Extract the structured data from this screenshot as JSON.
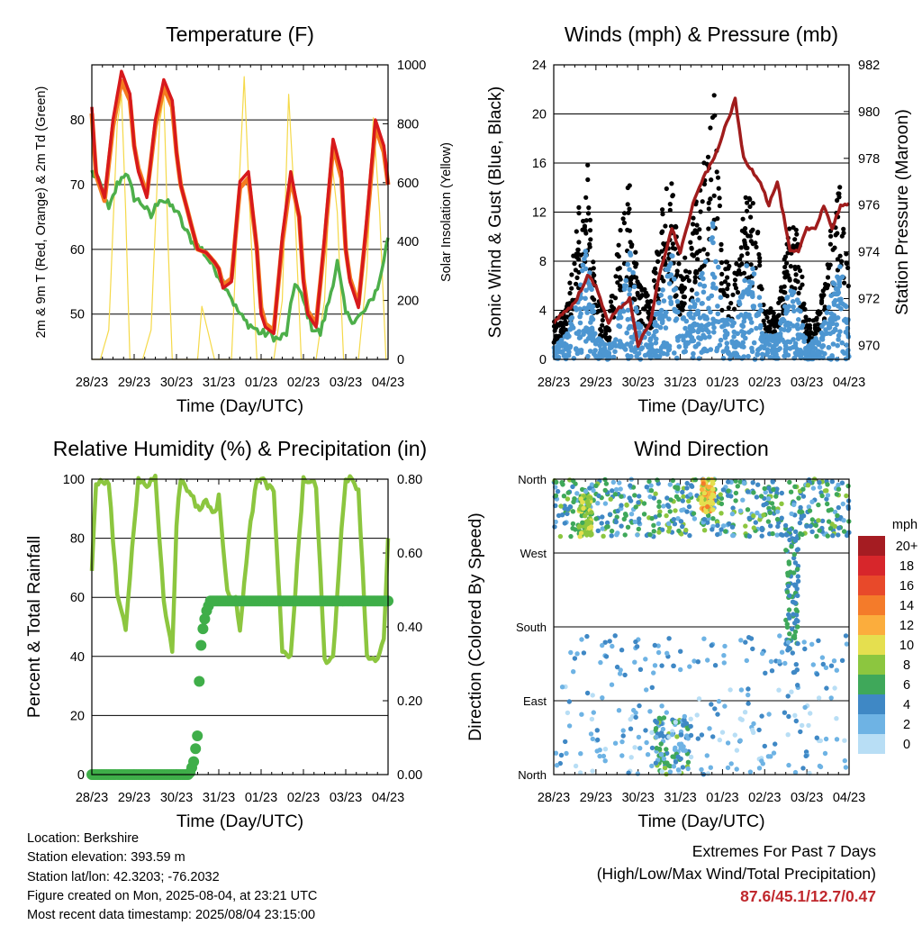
{
  "chart_data": [
    {
      "type": "line",
      "title": "Temperature (F)",
      "xlabel": "Time (Day/UTC)",
      "ylabel": "2m & 9m T (Red, Orange) & 2m Td (Green)",
      "ylabel_right": "Solar Insolation (Yellow)",
      "x_ticks": [
        "28/23",
        "29/23",
        "30/23",
        "31/23",
        "01/23",
        "02/23",
        "03/23",
        "04/23"
      ],
      "y_ticks": [
        50,
        60,
        70,
        80
      ],
      "y_right_ticks": [
        0,
        200,
        400,
        600,
        800,
        1000
      ],
      "ylim": [
        43,
        88.5
      ],
      "ylim_right": [
        0,
        1000
      ],
      "grid": true,
      "series": [
        {
          "role": "2m T",
          "color": "#d7191c",
          "x": [
            0,
            0.1,
            0.3,
            0.5,
            0.7,
            0.9,
            1.0,
            1.1,
            1.3,
            1.5,
            1.7,
            1.9,
            2.0,
            2.1,
            2.3,
            2.5,
            2.7,
            2.9,
            3.0,
            3.1,
            3.3,
            3.5,
            3.7,
            3.9,
            4.0,
            4.1,
            4.3,
            4.5,
            4.7,
            4.9,
            5.0,
            5.1,
            5.3,
            5.5,
            5.7,
            5.9,
            6.0,
            6.1,
            6.3,
            6.5,
            6.7,
            6.9,
            7.0
          ],
          "y": [
            82,
            72,
            68,
            80,
            87.5,
            84,
            76,
            72,
            68,
            80,
            86.2,
            83,
            75,
            70,
            65,
            60,
            59.5,
            58,
            57,
            54,
            55,
            70.5,
            72,
            60,
            50,
            48,
            47,
            62,
            72,
            65,
            55,
            50,
            48,
            62,
            77,
            72,
            60,
            55,
            51,
            65,
            80,
            76,
            70
          ]
        },
        {
          "role": "9m T",
          "color": "#f47b20",
          "x": [
            0,
            0.1,
            0.3,
            0.5,
            0.7,
            0.9,
            1.0,
            1.1,
            1.3,
            1.5,
            1.7,
            1.9,
            2.0,
            2.1,
            2.3,
            2.5,
            2.7,
            2.9,
            3.0,
            3.1,
            3.3,
            3.5,
            3.7,
            3.9,
            4.0,
            4.1,
            4.3,
            4.5,
            4.7,
            4.9,
            5.0,
            5.1,
            5.3,
            5.5,
            5.7,
            5.9,
            6.0,
            6.1,
            6.3,
            6.5,
            6.7,
            6.9,
            7.0
          ],
          "y": [
            81,
            71.5,
            67.5,
            79,
            86,
            83,
            76,
            72.5,
            68.5,
            79,
            85,
            82,
            75,
            70,
            65,
            60,
            59.5,
            58,
            57,
            54.5,
            55.5,
            69.5,
            71,
            60,
            51,
            48.5,
            47.5,
            61,
            71,
            65,
            55.5,
            50.5,
            48.5,
            61,
            76,
            71,
            60,
            55.5,
            51.5,
            64,
            79,
            75,
            70
          ]
        },
        {
          "role": "2m Td",
          "color": "#4daf4a",
          "x": [
            0,
            0.2,
            0.4,
            0.6,
            0.8,
            1.0,
            1.2,
            1.4,
            1.6,
            1.8,
            2.0,
            2.2,
            2.4,
            2.6,
            2.8,
            3.0,
            3.2,
            3.4,
            3.6,
            3.8,
            4.0,
            4.2,
            4.4,
            4.6,
            4.8,
            5.0,
            5.2,
            5.4,
            5.6,
            5.8,
            6.0,
            6.2,
            6.4,
            6.6,
            6.8,
            7.0
          ],
          "y": [
            72,
            70,
            66,
            70,
            72,
            68,
            67,
            65,
            68,
            67,
            66,
            63,
            61,
            60,
            58,
            56,
            54,
            51,
            49,
            48,
            47,
            47,
            46,
            47,
            55,
            52,
            48,
            47,
            52,
            58,
            50,
            49,
            50,
            52,
            55,
            62
          ]
        },
        {
          "role": "Solar Insolation",
          "color": "#f5d949",
          "axis": "right",
          "x": [
            0,
            0.1,
            0.2,
            0.4,
            0.6,
            0.7,
            0.8,
            0.9,
            1.0,
            1.1,
            1.2,
            1.4,
            1.6,
            1.7,
            1.8,
            1.9,
            2.0,
            2.3,
            2.5,
            2.6,
            2.7,
            2.8,
            2.9,
            3.0,
            3.3,
            3.45,
            3.6,
            3.75,
            3.9,
            4.0,
            4.3,
            4.5,
            4.65,
            4.8,
            4.95,
            5.0,
            5.3,
            5.5,
            5.65,
            5.8,
            5.95,
            6.0,
            6.3,
            6.5,
            6.65,
            6.8,
            6.95,
            7.0
          ],
          "y": [
            0,
            0,
            0,
            100,
            800,
            900,
            500,
            0,
            0,
            0,
            0,
            100,
            800,
            900,
            400,
            0,
            0,
            0,
            0,
            180,
            120,
            60,
            0,
            0,
            0,
            500,
            960,
            450,
            0,
            0,
            0,
            200,
            900,
            500,
            0,
            0,
            0,
            200,
            700,
            500,
            0,
            0,
            0,
            300,
            820,
            500,
            0,
            0
          ]
        }
      ]
    },
    {
      "type": "scatter",
      "title": "Winds (mph) & Pressure (mb)",
      "xlabel": "Time (Day/UTC)",
      "ylabel": "Sonic Wind & Gust (Blue, Black)",
      "ylabel_right": "Station Pressure (Maroon)",
      "x_ticks": [
        "28/23",
        "29/23",
        "30/23",
        "31/23",
        "01/23",
        "02/23",
        "03/23",
        "04/23"
      ],
      "y_ticks": [
        0,
        4,
        8,
        12,
        16,
        20,
        24
      ],
      "y_right_ticks": [
        970,
        972,
        974,
        976,
        978,
        980,
        982
      ],
      "ylim": [
        0,
        24
      ],
      "ylim_right": [
        969.4,
        982
      ],
      "grid": true,
      "wind_envelope": {
        "color": "#4d96d1",
        "x": [
          0,
          0.3,
          0.6,
          0.8,
          1.0,
          1.3,
          1.6,
          1.8,
          2.0,
          2.3,
          2.6,
          2.8,
          3.0,
          3.3,
          3.6,
          3.8,
          4.0,
          4.3,
          4.6,
          4.8,
          5.0,
          5.3,
          5.6,
          5.8,
          6.0,
          6.3,
          6.6,
          6.8,
          7.0
        ],
        "y": [
          1,
          2,
          6,
          10,
          2,
          1,
          5,
          10,
          3,
          2,
          7,
          9,
          3,
          5,
          8,
          12,
          4,
          3,
          9,
          7,
          2,
          2,
          6,
          5,
          1,
          2,
          6,
          9,
          3
        ]
      },
      "gust_envelope": {
        "color": "#000000",
        "x": [
          0,
          0.3,
          0.6,
          0.8,
          1.0,
          1.3,
          1.6,
          1.8,
          2.0,
          2.3,
          2.6,
          2.8,
          3.0,
          3.3,
          3.6,
          3.8,
          4.0,
          4.3,
          4.6,
          4.8,
          5.0,
          5.3,
          5.6,
          5.8,
          6.0,
          6.3,
          6.6,
          6.8,
          7.0
        ],
        "y": [
          3,
          4,
          12,
          16,
          5,
          3,
          11,
          14,
          6,
          5,
          13,
          14,
          7,
          11,
          16,
          21,
          8,
          7,
          14,
          12,
          4,
          4,
          11,
          10,
          3,
          4,
          11,
          14,
          6
        ]
      },
      "pressure": {
        "color": "#a01c1c",
        "x": [
          0,
          0.3,
          0.5,
          0.8,
          1.0,
          1.3,
          1.5,
          1.8,
          2.0,
          2.3,
          2.5,
          2.8,
          3.0,
          3.3,
          3.5,
          3.8,
          4.0,
          4.3,
          4.5,
          4.7,
          4.9,
          5.1,
          5.3,
          5.6,
          5.8,
          6.0,
          6.2,
          6.4,
          6.6,
          6.8,
          7.0
        ],
        "y": [
          971,
          971.5,
          971.8,
          973,
          972.5,
          971,
          971.5,
          972,
          970,
          971,
          973,
          975,
          974,
          976,
          977,
          978,
          979,
          980.5,
          978,
          977.5,
          977,
          976,
          977,
          974,
          974,
          975,
          975,
          976,
          975,
          976,
          976
        ]
      }
    },
    {
      "type": "line",
      "title": "Relative Humidity (%) & Precipitation (in)",
      "xlabel": "Time (Day/UTC)",
      "ylabel": "Percent & Total Rainfall",
      "x_ticks": [
        "28/23",
        "29/23",
        "30/23",
        "31/23",
        "01/23",
        "02/23",
        "03/23",
        "04/23"
      ],
      "y_ticks": [
        0,
        20,
        40,
        60,
        80,
        100
      ],
      "y_right_ticks": [
        "0.00",
        "0.20",
        "0.40",
        "0.60",
        "0.80"
      ],
      "ylim": [
        0,
        100
      ],
      "ylim_right": [
        0,
        0.8
      ],
      "grid": true,
      "series": [
        {
          "role": "Relative Humidity",
          "color": "#8cc63f",
          "x": [
            0,
            0.1,
            0.2,
            0.4,
            0.6,
            0.8,
            1.0,
            1.1,
            1.3,
            1.5,
            1.7,
            1.9,
            2.0,
            2.1,
            2.3,
            2.5,
            2.7,
            2.9,
            3.0,
            3.2,
            3.4,
            3.5,
            3.7,
            3.9,
            4.0,
            4.1,
            4.3,
            4.5,
            4.7,
            4.9,
            5.0,
            5.1,
            5.3,
            5.5,
            5.7,
            5.9,
            6.0,
            6.1,
            6.3,
            6.5,
            6.7,
            6.9,
            7.0
          ],
          "y": [
            68,
            98,
            100,
            99,
            60,
            50,
            85,
            100,
            98,
            100,
            58,
            42,
            85,
            100,
            96,
            90,
            92,
            88,
            94,
            62,
            60,
            48,
            80,
            100,
            100,
            99,
            95,
            42,
            40,
            80,
            100,
            100,
            98,
            38,
            40,
            82,
            100,
            100,
            97,
            40,
            38,
            45,
            80
          ]
        },
        {
          "role": "Total Rainfall",
          "color": "#3fae49",
          "axis": "right",
          "x": [
            0,
            2.3,
            2.4,
            2.5,
            2.55,
            2.6,
            2.7,
            2.8,
            3.0,
            4.0,
            5.0,
            6.0,
            7.0
          ],
          "y": [
            0,
            0,
            0.03,
            0.11,
            0.3,
            0.38,
            0.44,
            0.47,
            0.47,
            0.47,
            0.47,
            0.47,
            0.47
          ]
        }
      ]
    },
    {
      "type": "scatter",
      "title": "Wind Direction",
      "xlabel": "Time (Day/UTC)",
      "ylabel": "Direction (Colored By Speed)",
      "x_ticks": [
        "28/23",
        "29/23",
        "30/23",
        "31/23",
        "01/23",
        "02/23",
        "03/23",
        "04/23"
      ],
      "y_ticks": [
        "North",
        "East",
        "South",
        "West",
        "North"
      ],
      "ylim": [
        0,
        360
      ],
      "grid": true,
      "colorbar": {
        "title": "mph",
        "labels": [
          "20+",
          "18",
          "16",
          "14",
          "12",
          "10",
          "8",
          "6",
          "4",
          "2",
          "0"
        ],
        "colors": [
          "#a51c22",
          "#d7262b",
          "#e8492a",
          "#f47b2a",
          "#fbad3d",
          "#e5df4f",
          "#8cc63f",
          "#3fa85a",
          "#3f88c5",
          "#6eb3e4",
          "#b8def5"
        ]
      },
      "clusters": [
        {
          "x_range": [
            0,
            7
          ],
          "dir_range": [
            290,
            360
          ],
          "speed_range": [
            2,
            8
          ]
        },
        {
          "x_range": [
            0.6,
            0.9
          ],
          "dir_range": [
            290,
            340
          ],
          "speed_range": [
            6,
            10
          ]
        },
        {
          "x_range": [
            3.5,
            3.8
          ],
          "dir_range": [
            320,
            360
          ],
          "speed_range": [
            8,
            14
          ]
        },
        {
          "x_range": [
            5.5,
            5.8
          ],
          "dir_range": [
            150,
            300
          ],
          "speed_range": [
            3,
            6
          ]
        },
        {
          "x_range": [
            2.4,
            3.2
          ],
          "dir_range": [
            0,
            70
          ],
          "speed_range": [
            2,
            8
          ]
        },
        {
          "x_range": [
            0.3,
            7
          ],
          "dir_range": [
            120,
            170
          ],
          "speed_range": [
            1,
            5
          ]
        },
        {
          "x_range": [
            0,
            7
          ],
          "dir_range": [
            0,
            110
          ],
          "speed_range": [
            0,
            4
          ]
        }
      ]
    }
  ],
  "info": {
    "location": "Location: Berkshire",
    "elevation": "Station elevation: 393.59 m",
    "latlon": "Station lat/lon: 42.3203; -76.2032",
    "created": "Figure created on Mon, 2025-08-04, at 23:21 UTC",
    "recent": "Most recent data timestamp: 2025/08/04 23:15:00"
  },
  "extremes": {
    "title": "Extremes For Past 7 Days",
    "subtitle": "(High/Low/Max Wind/Total Precipitation)",
    "values": "87.6/45.1/12.7/0.47"
  }
}
